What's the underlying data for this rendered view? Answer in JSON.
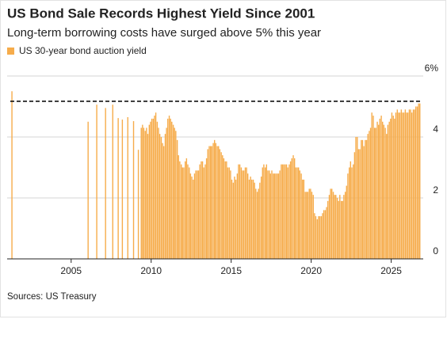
{
  "chart_data": {
    "type": "bar",
    "title": "US Bond Sale Records Highest Yield Since 2001",
    "subtitle": "Long-term borrowing costs have surged above 5% this year",
    "source": "Sources: US Treasury",
    "series": [
      {
        "name": "US 30-year bond auction yield",
        "color": "#f6ac4b",
        "x": [
          2001.3,
          2006.06,
          2006.6,
          2007.15,
          2007.6,
          2007.94,
          2008.2,
          2008.54,
          2008.9,
          2009.2,
          2009.38,
          2009.46,
          2009.54,
          2009.63,
          2009.71,
          2009.79,
          2009.88,
          2009.96,
          2010.04,
          2010.13,
          2010.21,
          2010.29,
          2010.38,
          2010.46,
          2010.54,
          2010.63,
          2010.71,
          2010.79,
          2010.88,
          2010.96,
          2011.04,
          2011.13,
          2011.21,
          2011.29,
          2011.38,
          2011.46,
          2011.54,
          2011.63,
          2011.71,
          2011.79,
          2011.88,
          2011.96,
          2012.04,
          2012.13,
          2012.21,
          2012.29,
          2012.38,
          2012.46,
          2012.54,
          2012.63,
          2012.71,
          2012.79,
          2012.88,
          2012.96,
          2013.04,
          2013.13,
          2013.21,
          2013.29,
          2013.38,
          2013.46,
          2013.54,
          2013.63,
          2013.71,
          2013.79,
          2013.88,
          2013.96,
          2014.04,
          2014.13,
          2014.21,
          2014.29,
          2014.38,
          2014.46,
          2014.54,
          2014.63,
          2014.71,
          2014.79,
          2014.88,
          2014.96,
          2015.04,
          2015.13,
          2015.21,
          2015.29,
          2015.38,
          2015.46,
          2015.54,
          2015.63,
          2015.71,
          2015.79,
          2015.88,
          2015.96,
          2016.04,
          2016.13,
          2016.21,
          2016.29,
          2016.38,
          2016.46,
          2016.54,
          2016.63,
          2016.71,
          2016.79,
          2016.88,
          2016.96,
          2017.04,
          2017.13,
          2017.21,
          2017.29,
          2017.38,
          2017.46,
          2017.54,
          2017.63,
          2017.71,
          2017.79,
          2017.88,
          2017.96,
          2018.04,
          2018.13,
          2018.21,
          2018.29,
          2018.38,
          2018.46,
          2018.54,
          2018.63,
          2018.71,
          2018.79,
          2018.88,
          2018.96,
          2019.04,
          2019.13,
          2019.21,
          2019.29,
          2019.38,
          2019.46,
          2019.54,
          2019.63,
          2019.71,
          2019.79,
          2019.88,
          2019.96,
          2020.04,
          2020.13,
          2020.21,
          2020.29,
          2020.38,
          2020.46,
          2020.54,
          2020.63,
          2020.71,
          2020.79,
          2020.88,
          2020.96,
          2021.04,
          2021.13,
          2021.21,
          2021.29,
          2021.38,
          2021.46,
          2021.54,
          2021.63,
          2021.71,
          2021.79,
          2021.88,
          2021.96,
          2022.04,
          2022.13,
          2022.21,
          2022.29,
          2022.38,
          2022.46,
          2022.54,
          2022.63,
          2022.71,
          2022.79,
          2022.88,
          2022.96,
          2023.04,
          2023.13,
          2023.21,
          2023.29,
          2023.38,
          2023.46,
          2023.54,
          2023.63,
          2023.71,
          2023.79,
          2023.88,
          2023.96,
          2024.04,
          2024.13,
          2024.21,
          2024.29,
          2024.38,
          2024.46,
          2024.54,
          2024.63,
          2024.71,
          2024.79,
          2024.88,
          2024.96,
          2025.04,
          2025.13,
          2025.21,
          2025.29,
          2025.38,
          2025.46,
          2025.54,
          2025.63,
          2025.71,
          2025.79,
          2025.88,
          2025.96,
          2026.04,
          2026.13,
          2026.21,
          2026.29,
          2026.38,
          2026.46,
          2026.54,
          2026.63,
          2026.71,
          2026.79
        ],
        "values": [
          5.5,
          4.5,
          5.06,
          4.95,
          5.06,
          4.62,
          4.57,
          4.65,
          4.52,
          3.58,
          4.3,
          4.4,
          4.3,
          4.2,
          4.3,
          4.1,
          4.4,
          4.5,
          4.6,
          4.6,
          4.7,
          4.8,
          4.5,
          4.3,
          4.1,
          4.0,
          3.8,
          3.7,
          4.1,
          4.3,
          4.6,
          4.7,
          4.6,
          4.5,
          4.4,
          4.3,
          4.2,
          3.9,
          3.4,
          3.2,
          3.1,
          3.0,
          3.0,
          3.2,
          3.3,
          3.1,
          3.0,
          2.8,
          2.7,
          2.6,
          2.8,
          2.9,
          2.9,
          2.9,
          3.1,
          3.2,
          3.2,
          3.0,
          3.1,
          3.3,
          3.6,
          3.7,
          3.7,
          3.7,
          3.8,
          3.9,
          3.8,
          3.7,
          3.7,
          3.6,
          3.5,
          3.4,
          3.3,
          3.2,
          3.2,
          3.0,
          3.0,
          2.9,
          2.6,
          2.5,
          2.7,
          2.6,
          2.8,
          3.1,
          3.1,
          3.0,
          2.9,
          2.9,
          3.0,
          3.0,
          2.8,
          2.6,
          2.7,
          2.6,
          2.6,
          2.5,
          2.3,
          2.2,
          2.3,
          2.5,
          2.7,
          3.0,
          3.1,
          3.0,
          3.1,
          2.9,
          2.9,
          2.8,
          2.9,
          2.8,
          2.8,
          2.8,
          2.8,
          2.8,
          2.9,
          3.1,
          3.1,
          3.1,
          3.1,
          3.1,
          3.0,
          3.1,
          3.2,
          3.3,
          3.4,
          3.3,
          3.0,
          3.0,
          3.0,
          2.9,
          2.8,
          2.6,
          2.6,
          2.2,
          2.2,
          2.2,
          2.3,
          2.3,
          2.2,
          2.1,
          1.5,
          1.4,
          1.3,
          1.4,
          1.4,
          1.4,
          1.5,
          1.6,
          1.6,
          1.7,
          1.9,
          2.1,
          2.3,
          2.3,
          2.2,
          2.1,
          2.1,
          2.0,
          1.9,
          2.1,
          1.9,
          1.9,
          2.1,
          2.2,
          2.4,
          2.8,
          3.0,
          3.2,
          3.0,
          3.1,
          3.5,
          4.0,
          4.0,
          3.6,
          3.6,
          3.9,
          3.9,
          3.7,
          3.9,
          3.9,
          4.1,
          4.2,
          4.3,
          4.8,
          4.7,
          4.3,
          4.3,
          4.5,
          4.4,
          4.6,
          4.7,
          4.5,
          4.4,
          4.3,
          4.1,
          4.4,
          4.5,
          4.6,
          4.8,
          4.7,
          4.6,
          4.8,
          4.9,
          4.8,
          4.8,
          4.9,
          4.8,
          4.8,
          4.9,
          4.8,
          4.8,
          4.9,
          4.9,
          4.8,
          4.9,
          4.9,
          5.0,
          5.0,
          5.1,
          5.1
        ]
      }
    ],
    "reference_line": 5.17,
    "xlim": [
      2001,
      2027
    ],
    "xticks": [
      2005,
      2010,
      2015,
      2020,
      2025
    ],
    "ylim": [
      0,
      6
    ],
    "yticks": [
      0,
      2,
      4,
      {
        "value": 6,
        "label": "6%"
      }
    ],
    "grid": true
  }
}
